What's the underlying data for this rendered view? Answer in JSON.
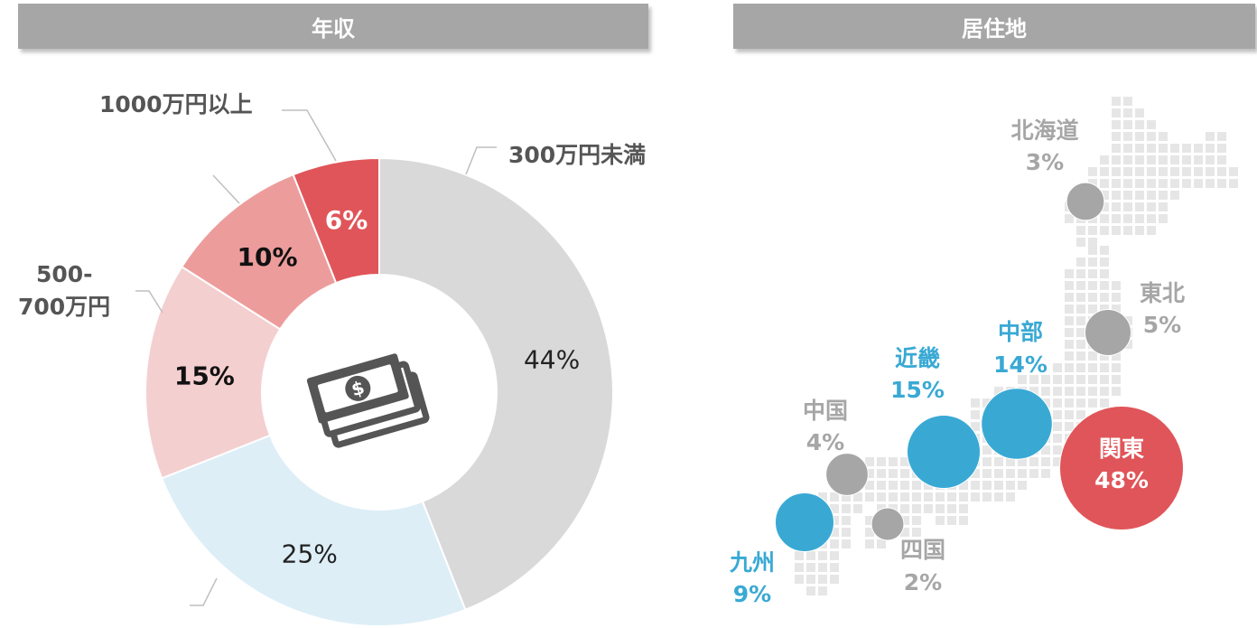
{
  "headers": {
    "left": "年収",
    "right": "居住地"
  },
  "chart_data": [
    {
      "type": "pie",
      "title": "年収",
      "center_icon": "money-stack-icon",
      "slices": [
        {
          "label": "300万円未満",
          "value": 44,
          "value_label": "44%",
          "color": "#d9d9d9",
          "text_color": "#222222"
        },
        {
          "label": "",
          "value": 25,
          "value_label": "25%",
          "color": "#ddeef7",
          "text_color": "#222222"
        },
        {
          "label": "500-700万円",
          "value": 15,
          "value_label": "15%",
          "color": "#f4cfd0",
          "text_color": "#111111"
        },
        {
          "label": "",
          "value": 10,
          "value_label": "10%",
          "color": "#ed9c9c",
          "text_color": "#111111"
        },
        {
          "label": "1000万円以上",
          "value": 6,
          "value_label": "6%",
          "color": "#e05559",
          "text_color": "#ffffff"
        }
      ]
    },
    {
      "type": "scatter",
      "title": "居住地",
      "regions": [
        {
          "name": "北海道",
          "value": 3,
          "value_label": "3%",
          "color": "#a6a6a6"
        },
        {
          "name": "東北",
          "value": 5,
          "value_label": "5%",
          "color": "#a6a6a6"
        },
        {
          "name": "関東",
          "value": 48,
          "value_label": "48%",
          "color": "#e05559"
        },
        {
          "name": "中部",
          "value": 14,
          "value_label": "14%",
          "color": "#39a9d4"
        },
        {
          "name": "近畿",
          "value": 15,
          "value_label": "15%",
          "color": "#39a9d4"
        },
        {
          "name": "中国",
          "value": 4,
          "value_label": "4%",
          "color": "#a6a6a6"
        },
        {
          "name": "四国",
          "value": 2,
          "value_label": "2%",
          "color": "#a6a6a6"
        },
        {
          "name": "九州",
          "value": 9,
          "value_label": "9%",
          "color": "#39a9d4"
        }
      ]
    }
  ],
  "text": {
    "label_300": "300万円未満",
    "label_1000": "1000万円以上",
    "label_500_line1": "500-",
    "label_500_line2": "700万円"
  }
}
